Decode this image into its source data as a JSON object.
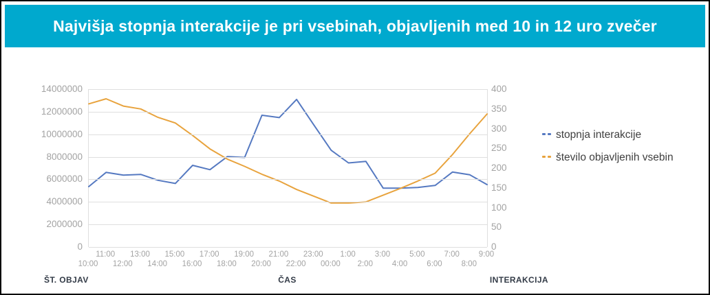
{
  "banner": {
    "title": "Najvišja stopnja interakcije je pri vsebinah, objavljenih med 10 in 12 uro zvečer",
    "background": "#00A9CE",
    "text_color": "#FFFFFF"
  },
  "chart_data": {
    "type": "line",
    "categories": [
      "10:00",
      "11:00",
      "12:00",
      "13:00",
      "14:00",
      "15:00",
      "16:00",
      "17:00",
      "18:00",
      "19:00",
      "20:00",
      "21:00",
      "22:00",
      "23:00",
      "00:00",
      "1:00",
      "2:00",
      "3:00",
      "4:00",
      "5:00",
      "6:00",
      "7:00",
      "8:00",
      "9:00"
    ],
    "x_axis": {
      "title": "ČAS",
      "label_rows": "staggered: even-index hours on lower row, odd-index hours on upper row"
    },
    "left_axis": {
      "title": "ŠT. OBJAV",
      "min": 0,
      "max": 14000000,
      "tick_step": 2000000,
      "tick_labels": [
        "14000000",
        "12000000",
        "10000000",
        "8000000",
        "6000000",
        "4000000",
        "2000000",
        "0"
      ]
    },
    "right_axis": {
      "title": "INTERAKCIJA",
      "min": 0,
      "max": 400,
      "tick_step": 50,
      "tick_labels": [
        "400",
        "350",
        "300",
        "250",
        "200",
        "150",
        "100",
        "50",
        "0"
      ]
    },
    "grid": "horizontal",
    "legend_position": "right",
    "series": [
      {
        "name": "stopnja interakcije",
        "color": "#5579C1",
        "axis": "right",
        "values": [
          153,
          189,
          182,
          184,
          169,
          161,
          207,
          196,
          229,
          227,
          334,
          328,
          374,
          309,
          245,
          213,
          217,
          149,
          149,
          151,
          156,
          190,
          183,
          158
        ]
      },
      {
        "name": "število objavljenih vsebin",
        "color": "#E8A33D",
        "axis": "left",
        "values": [
          12700000,
          13150000,
          12500000,
          12250000,
          11500000,
          11000000,
          9900000,
          8700000,
          7800000,
          7150000,
          6450000,
          5850000,
          5100000,
          4500000,
          3900000,
          3900000,
          4000000,
          4600000,
          5200000,
          5850000,
          6550000,
          8200000,
          10050000,
          11800000
        ]
      }
    ]
  },
  "colors": {
    "grid": "#DEDEDE",
    "tick_label": "#A3A3A3",
    "axis_title": "#333B47",
    "legend_text": "#3F3F3F",
    "page_border": "#000000"
  }
}
